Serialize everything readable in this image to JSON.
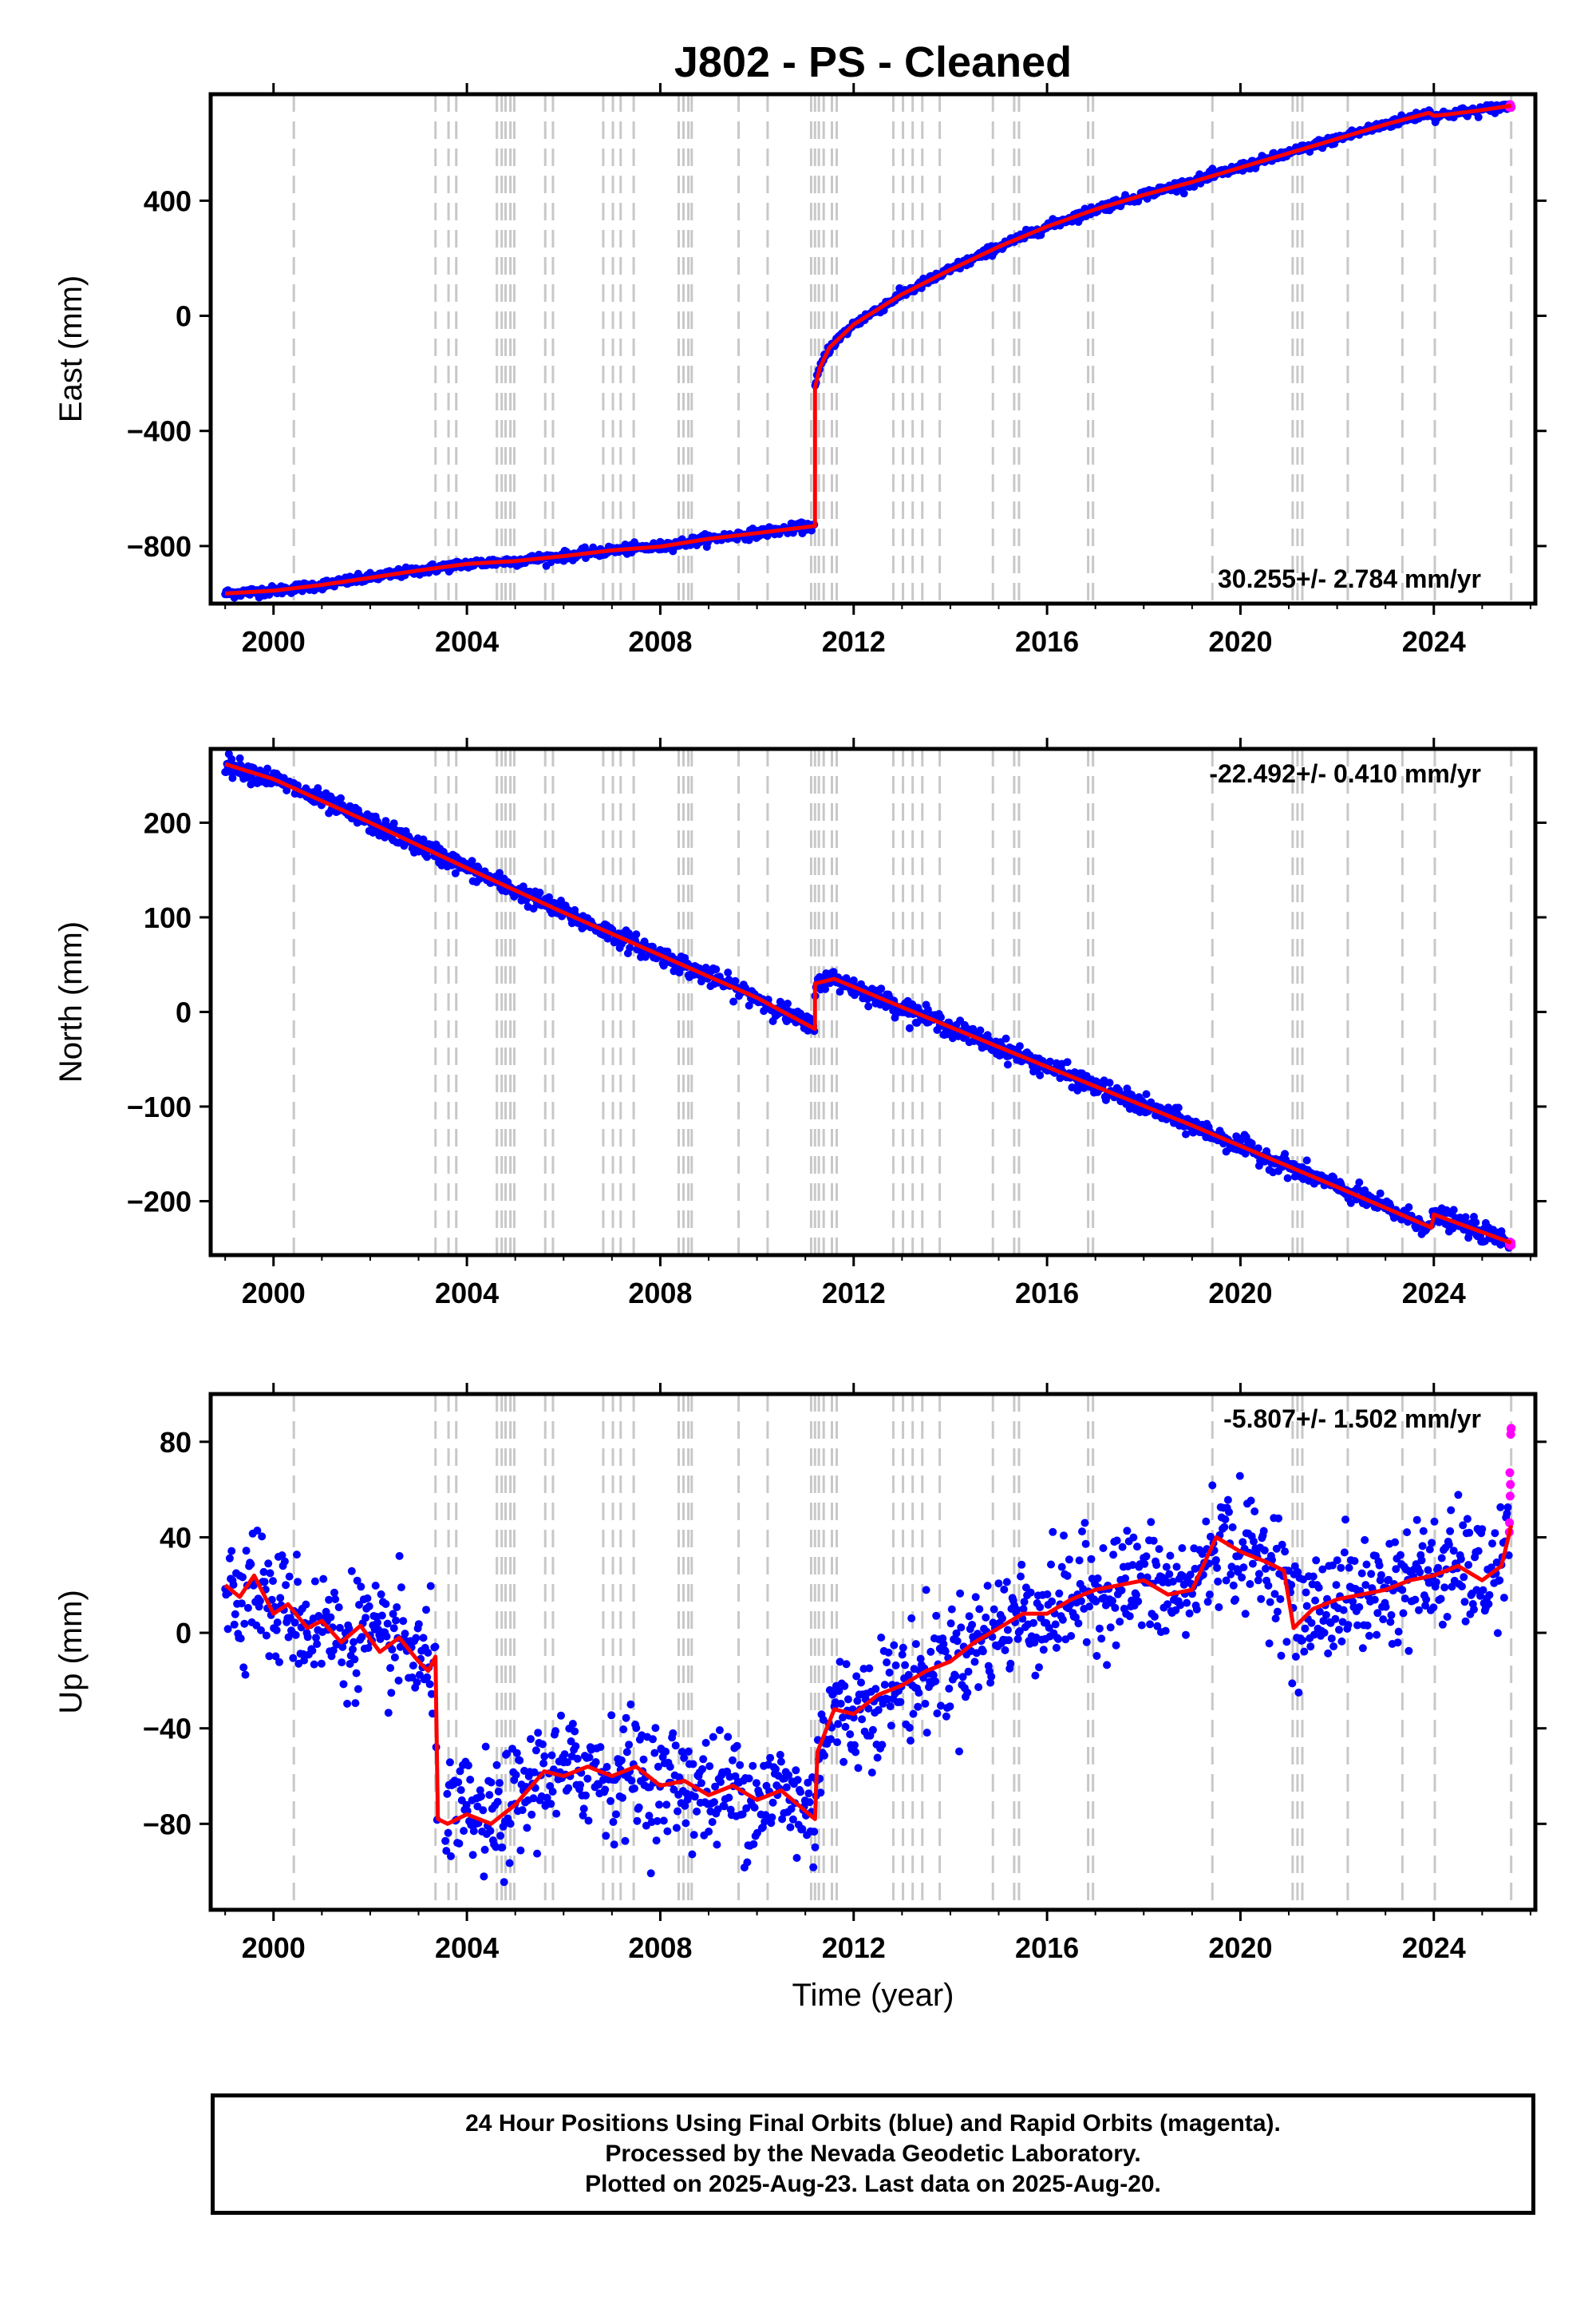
{
  "title": "J802  - PS - Cleaned",
  "colors": {
    "final_orbits": "#0000ff",
    "rapid_orbits": "#ff00ff",
    "model": "#ff0000",
    "event_lines": "#c8c8c8",
    "frame": "#000000"
  },
  "x_axis": {
    "label": "Time (year)",
    "range": [
      1998.7,
      2026.1
    ],
    "ticks": [
      2000,
      2004,
      2008,
      2012,
      2016,
      2020,
      2024
    ],
    "tick_labels": [
      "2000",
      "2004",
      "2008",
      "2012",
      "2016",
      "2020",
      "2024"
    ]
  },
  "event_lines": [
    2000.42,
    2003.35,
    2003.62,
    2003.78,
    2004.62,
    2004.72,
    2004.8,
    2004.9,
    2004.98,
    2005.62,
    2005.78,
    2006.82,
    2007.02,
    2007.18,
    2007.45,
    2008.38,
    2008.48,
    2008.58,
    2008.65,
    2009.62,
    2010.22,
    2011.12,
    2011.2,
    2011.28,
    2011.38,
    2011.55,
    2011.65,
    2012.82,
    2013.02,
    2013.22,
    2013.42,
    2013.78,
    2014.88,
    2015.32,
    2015.42,
    2016.85,
    2016.95,
    2019.42,
    2021.08,
    2021.18,
    2021.28,
    2022.22,
    2023.35,
    2024.02,
    2025.6
  ],
  "chart_data": [
    {
      "type": "scatter",
      "name": "east",
      "ylabel": "East (mm)",
      "ylim": [
        -1000,
        770
      ],
      "yticks": [
        -800,
        -400,
        0,
        400
      ],
      "ytick_labels": [
        "−800",
        "−400",
        "0",
        "400"
      ],
      "rate_text": "30.255+/- 2.784 mm/yr",
      "rate_position": "bottom-right",
      "model": {
        "x": [
          1999.0,
          2000.0,
          2001.0,
          2002.0,
          2003.0,
          2004.0,
          2005.0,
          2006.0,
          2007.0,
          2008.0,
          2009.0,
          2010.0,
          2011.2,
          2011.2,
          2011.3,
          2011.5,
          2012.0,
          2013.0,
          2014.0,
          2015.0,
          2016.0,
          2017.0,
          2018.0,
          2019.0,
          2020.0,
          2021.0,
          2022.0,
          2023.0,
          2023.9,
          2024.0,
          2024.3,
          2025.0,
          2025.6
        ],
        "y": [
          -965,
          -955,
          -935,
          -910,
          -885,
          -862,
          -852,
          -835,
          -815,
          -802,
          -775,
          -755,
          -730,
          -250,
          -180,
          -110,
          -30,
          75,
          160,
          240,
          310,
          370,
          420,
          465,
          515,
          565,
          615,
          665,
          705,
          695,
          700,
          715,
          730
        ]
      },
      "noise": 8
    },
    {
      "type": "scatter",
      "name": "north",
      "ylabel": "North (mm)",
      "ylim": [
        -257,
        278
      ],
      "yticks": [
        -200,
        -100,
        0,
        100,
        200
      ],
      "ytick_labels": [
        "−200",
        "−100",
        "0",
        "100",
        "200"
      ],
      "rate_text": "-22.492+/- 0.410 mm/yr",
      "rate_position": "top-right",
      "model": {
        "x": [
          1999.0,
          2000.0,
          2002.0,
          2004.0,
          2006.0,
          2008.0,
          2010.0,
          2011.2,
          2011.2,
          2011.6,
          2013.0,
          2016.0,
          2019.0,
          2022.0,
          2023.95,
          2024.0,
          2025.6
        ],
        "y": [
          262,
          246,
          200,
          152,
          105,
          60,
          15,
          -18,
          30,
          35,
          5,
          -58,
          -120,
          -185,
          -228,
          -214,
          -244
        ]
      },
      "noise": 5
    },
    {
      "type": "scatter",
      "name": "up",
      "ylabel": "Up (mm)",
      "ylim": [
        -116,
        100
      ],
      "yticks": [
        -80,
        -40,
        0,
        40,
        80
      ],
      "ytick_labels": [
        "−80",
        "−40",
        "0",
        "40",
        "80"
      ],
      "rate_text": "-5.807+/- 1.502 mm/yr",
      "rate_position": "top-right",
      "model": {
        "x": [
          1999.0,
          1999.3,
          1999.6,
          2000.0,
          2000.3,
          2000.7,
          2001.0,
          2001.4,
          2001.8,
          2002.2,
          2002.6,
          2003.0,
          2003.2,
          2003.35,
          2003.4,
          2003.6,
          2004.0,
          2004.5,
          2005.0,
          2005.6,
          2006.0,
          2006.5,
          2007.0,
          2007.5,
          2008.0,
          2008.5,
          2009.0,
          2009.5,
          2010.0,
          2010.5,
          2011.2,
          2011.25,
          2011.6,
          2012.0,
          2012.5,
          2013.0,
          2013.5,
          2014.0,
          2014.5,
          2015.0,
          2015.5,
          2016.0,
          2016.5,
          2017.0,
          2017.5,
          2018.0,
          2018.5,
          2019.0,
          2019.5,
          2020.0,
          2020.5,
          2020.9,
          2021.1,
          2021.5,
          2022.0,
          2022.5,
          2023.0,
          2023.5,
          2024.0,
          2024.5,
          2025.0,
          2025.4,
          2025.6
        ],
        "y": [
          20,
          15,
          24,
          8,
          12,
          2,
          5,
          -4,
          3,
          -8,
          -2,
          -12,
          -16,
          -10,
          -78,
          -80,
          -76,
          -80,
          -72,
          -58,
          -60,
          -56,
          -60,
          -56,
          -64,
          -62,
          -68,
          -64,
          -70,
          -66,
          -78,
          -50,
          -32,
          -34,
          -26,
          -22,
          -16,
          -12,
          -4,
          2,
          8,
          8,
          14,
          18,
          20,
          22,
          16,
          18,
          40,
          34,
          30,
          26,
          2,
          10,
          14,
          16,
          18,
          22,
          24,
          28,
          22,
          28,
          45
        ]
      },
      "noise": 12,
      "gap": [
        2003.4,
        2003.55
      ]
    }
  ],
  "caption": {
    "line1": "24 Hour Positions Using Final Orbits (blue) and Rapid Orbits (magenta).",
    "line2": "Processed by the Nevada Geodetic Laboratory.",
    "line3": "Plotted on 2025-Aug-23. Last data on 2025-Aug-20."
  }
}
